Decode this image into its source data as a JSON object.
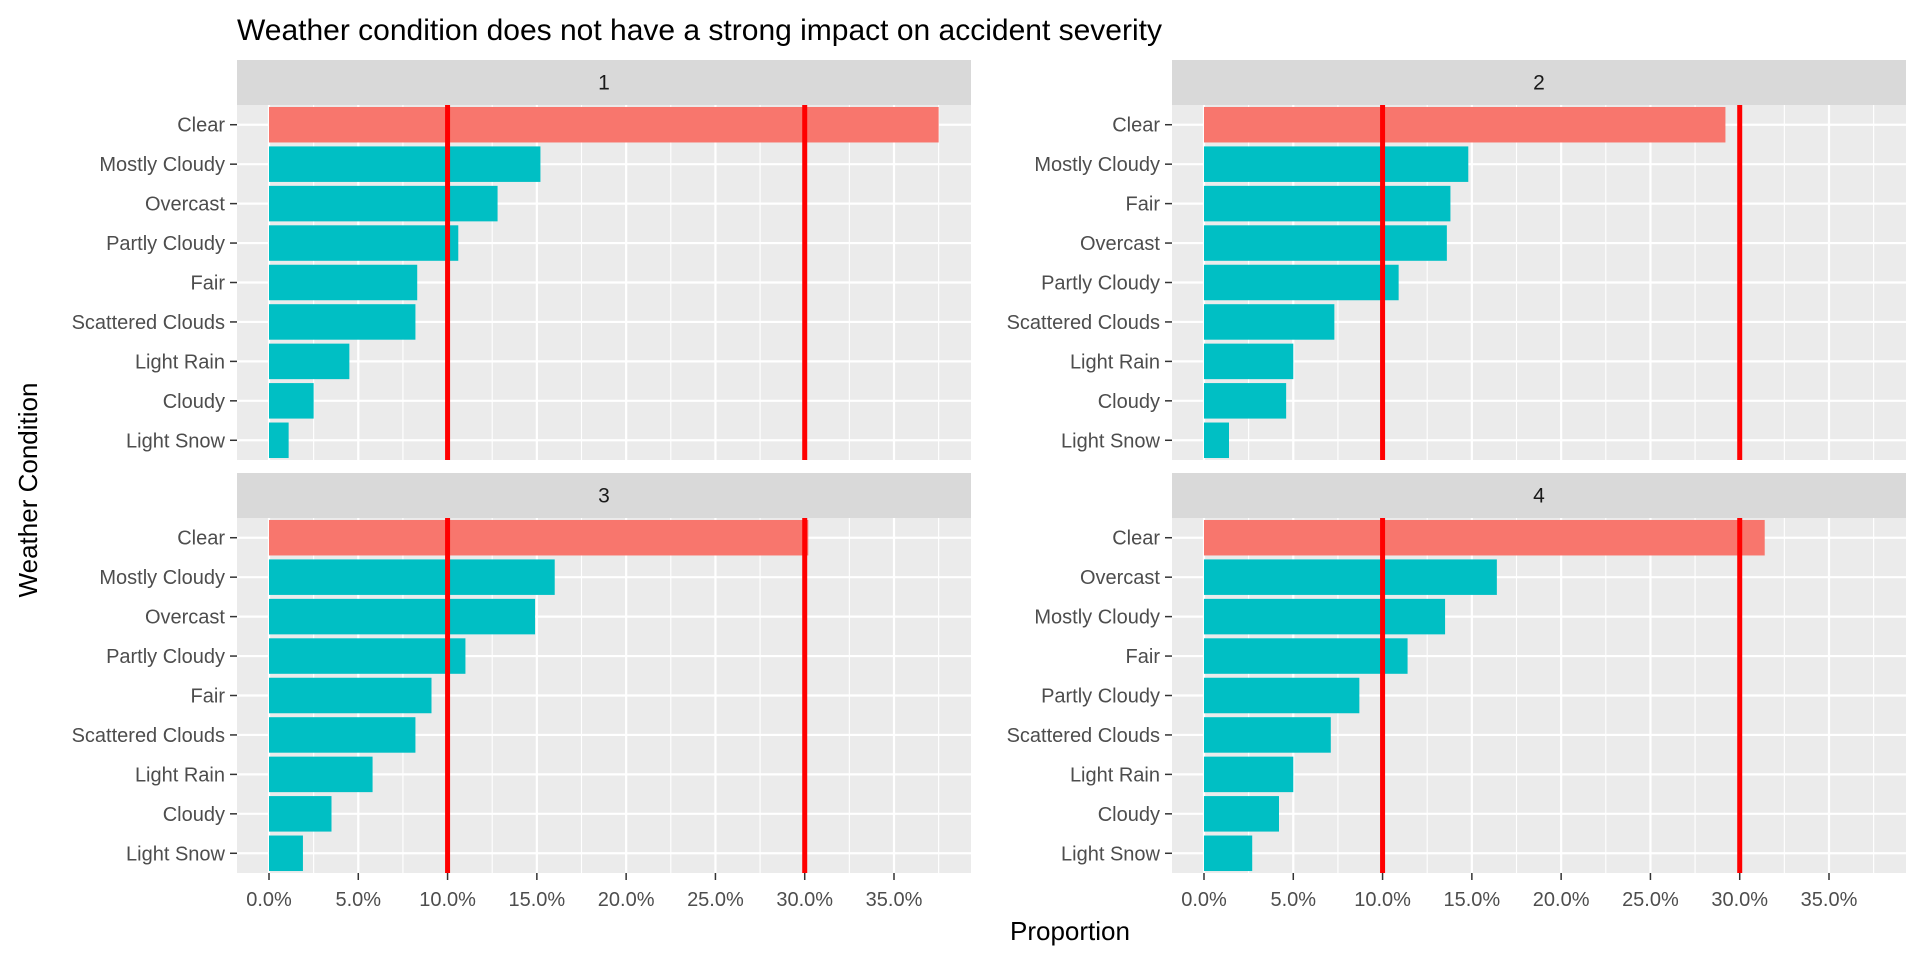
{
  "chart_data": {
    "type": "bar",
    "orientation": "horizontal",
    "title": "Weather condition does not have a strong impact on accident severity",
    "xlabel": "Proportion",
    "ylabel": "Weather Condition",
    "xlim": [
      0,
      0.39
    ],
    "x_ticks": [
      0,
      0.05,
      0.1,
      0.15,
      0.2,
      0.25,
      0.3,
      0.35
    ],
    "x_tick_labels": [
      "0.0%",
      "5.0%",
      "10.0%",
      "15.0%",
      "20.0%",
      "25.0%",
      "30.0%",
      "35.0%"
    ],
    "reference_lines": [
      0.1,
      0.3
    ],
    "reference_line_color": "#ff0000",
    "highlight_color": "#F8766D",
    "bar_color": "#00BFC4",
    "panel_background": "#EBEBEB",
    "strip_background": "#D9D9D9",
    "grid": true,
    "facets": [
      {
        "label": "1",
        "categories": [
          "Clear",
          "Mostly Cloudy",
          "Overcast",
          "Partly Cloudy",
          "Fair",
          "Scattered Clouds",
          "Light Rain",
          "Cloudy",
          "Light Snow"
        ],
        "values": [
          0.375,
          0.152,
          0.128,
          0.106,
          0.083,
          0.082,
          0.045,
          0.025,
          0.011
        ],
        "highlight": [
          true,
          false,
          false,
          false,
          false,
          false,
          false,
          false,
          false
        ]
      },
      {
        "label": "2",
        "categories": [
          "Clear",
          "Mostly Cloudy",
          "Fair",
          "Overcast",
          "Partly Cloudy",
          "Scattered Clouds",
          "Light Rain",
          "Cloudy",
          "Light Snow"
        ],
        "values": [
          0.292,
          0.148,
          0.138,
          0.136,
          0.109,
          0.073,
          0.05,
          0.046,
          0.014
        ],
        "highlight": [
          true,
          false,
          false,
          false,
          false,
          false,
          false,
          false,
          false
        ]
      },
      {
        "label": "3",
        "categories": [
          "Clear",
          "Mostly Cloudy",
          "Overcast",
          "Partly Cloudy",
          "Fair",
          "Scattered Clouds",
          "Light Rain",
          "Cloudy",
          "Light Snow"
        ],
        "values": [
          0.302,
          0.16,
          0.149,
          0.11,
          0.091,
          0.082,
          0.058,
          0.035,
          0.019
        ],
        "highlight": [
          true,
          false,
          false,
          false,
          false,
          false,
          false,
          false,
          false
        ]
      },
      {
        "label": "4",
        "categories": [
          "Clear",
          "Overcast",
          "Mostly Cloudy",
          "Fair",
          "Partly Cloudy",
          "Scattered Clouds",
          "Light Rain",
          "Cloudy",
          "Light Snow"
        ],
        "values": [
          0.314,
          0.164,
          0.135,
          0.114,
          0.087,
          0.071,
          0.05,
          0.042,
          0.027
        ],
        "highlight": [
          true,
          false,
          false,
          false,
          false,
          false,
          false,
          false,
          false
        ]
      }
    ]
  }
}
